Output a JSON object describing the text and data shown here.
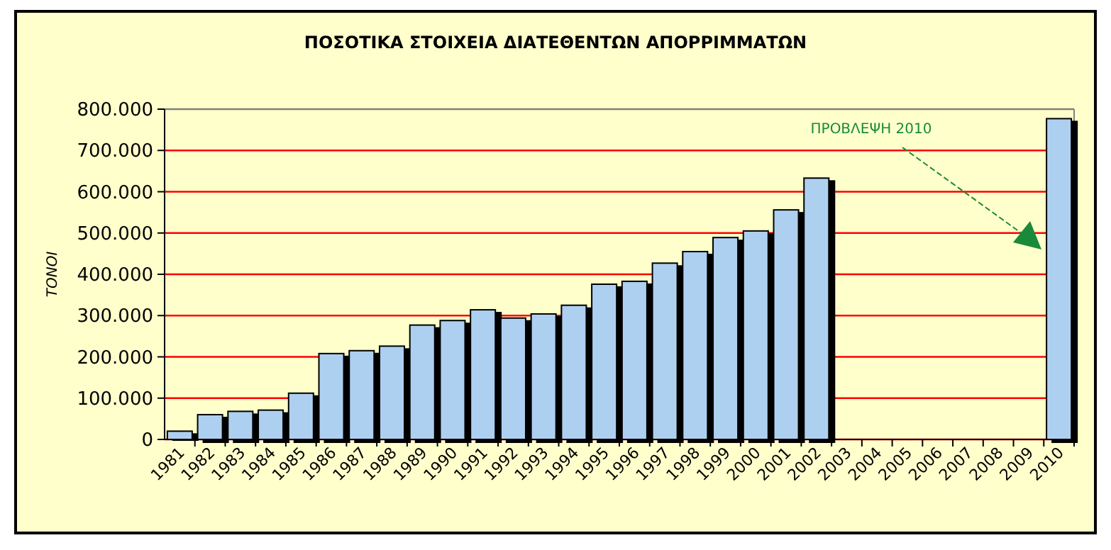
{
  "chart_data": {
    "type": "bar",
    "title": "ΠΟΣΟΤΙΚΑ ΣΤΟΙΧΕΙΑ ΔΙΑΤΕΘΕΝΤΩΝ ΑΠΟΡΡΙΜΜΑΤΩΝ",
    "ylabel": "ΤΟΝΟΙ",
    "categories": [
      "1981",
      "1982",
      "1983",
      "1984",
      "1985",
      "1986",
      "1987",
      "1988",
      "1989",
      "1990",
      "1991",
      "1992",
      "1993",
      "1994",
      "1995",
      "1996",
      "1997",
      "1998",
      "1999",
      "2000",
      "2001",
      "2002",
      "2003",
      "2004",
      "2005",
      "2006",
      "2007",
      "2008",
      "2009",
      "2010"
    ],
    "values": [
      20000,
      60000,
      68000,
      71000,
      112000,
      208000,
      215000,
      226000,
      277000,
      288000,
      314000,
      294000,
      304000,
      325000,
      376000,
      383000,
      427000,
      455000,
      489000,
      505000,
      556000,
      633000,
      null,
      null,
      null,
      null,
      null,
      null,
      null,
      777000
    ],
    "color": "#aed0f0",
    "ylim": [
      0,
      800000
    ],
    "yticks": [
      {
        "value": 0,
        "label": "0"
      },
      {
        "value": 100000,
        "label": "100.000"
      },
      {
        "value": 200000,
        "label": "200.000"
      },
      {
        "value": 300000,
        "label": "300.000"
      },
      {
        "value": 400000,
        "label": "400.000"
      },
      {
        "value": 500000,
        "label": "500.000"
      },
      {
        "value": 600000,
        "label": "600.000"
      },
      {
        "value": 700000,
        "label": "700.000"
      },
      {
        "value": 800000,
        "label": "800.000"
      }
    ],
    "grid": "y",
    "annotations": [
      "ΠΡΟΒΛΕΨΗ 2010"
    ]
  }
}
